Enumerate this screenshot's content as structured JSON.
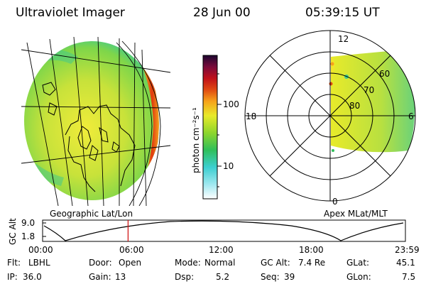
{
  "header": {
    "instrument": "Ultraviolet Imager",
    "date": "28 Jun 00",
    "time": "05:39:15 UT"
  },
  "geo_panel": {
    "label": "Geographic Lat/Lon"
  },
  "colorbar": {
    "label": "photon cm⁻²s⁻¹",
    "ticks": [
      "100",
      "10"
    ],
    "scale": "log",
    "colors": [
      "#ffffff",
      "#a0e8f0",
      "#3ccfd0",
      "#2fbf5a",
      "#8ed62c",
      "#e8ea2a",
      "#f6a21a",
      "#e04a12",
      "#c0101a",
      "#7a0a3a",
      "#1c0630"
    ]
  },
  "polar_panel": {
    "label": "Apex MLat/MLT",
    "mlt_labels": [
      "12",
      "18",
      "6",
      "0"
    ],
    "lat_labels": [
      "60",
      "70",
      "80"
    ]
  },
  "altitude_strip": {
    "ylabel": "GC Alt",
    "yticks": [
      "9.0",
      "1.8"
    ],
    "xticks": [
      "00:00",
      "06:00",
      "12:00",
      "18:00",
      "23:59"
    ],
    "current_time_hours": 5.654,
    "marker_color": "#d01818"
  },
  "info": {
    "row1": [
      {
        "label": "Flt:",
        "value": "LBHL"
      },
      {
        "label": "Door:",
        "value": "Open"
      },
      {
        "label": "Mode:",
        "value": "Normal"
      },
      {
        "label": "GC Alt:",
        "value": "7.4 Re"
      },
      {
        "label": "GLat:",
        "value": "45.1"
      }
    ],
    "row2": [
      {
        "label": "IP:",
        "value": "36.0"
      },
      {
        "label": "Gain:",
        "value": "13"
      },
      {
        "label": "Dsp:",
        "value": "5.2"
      },
      {
        "label": "Seq:",
        "value": "39"
      },
      {
        "label": "GLon:",
        "value": "7.5"
      }
    ]
  }
}
